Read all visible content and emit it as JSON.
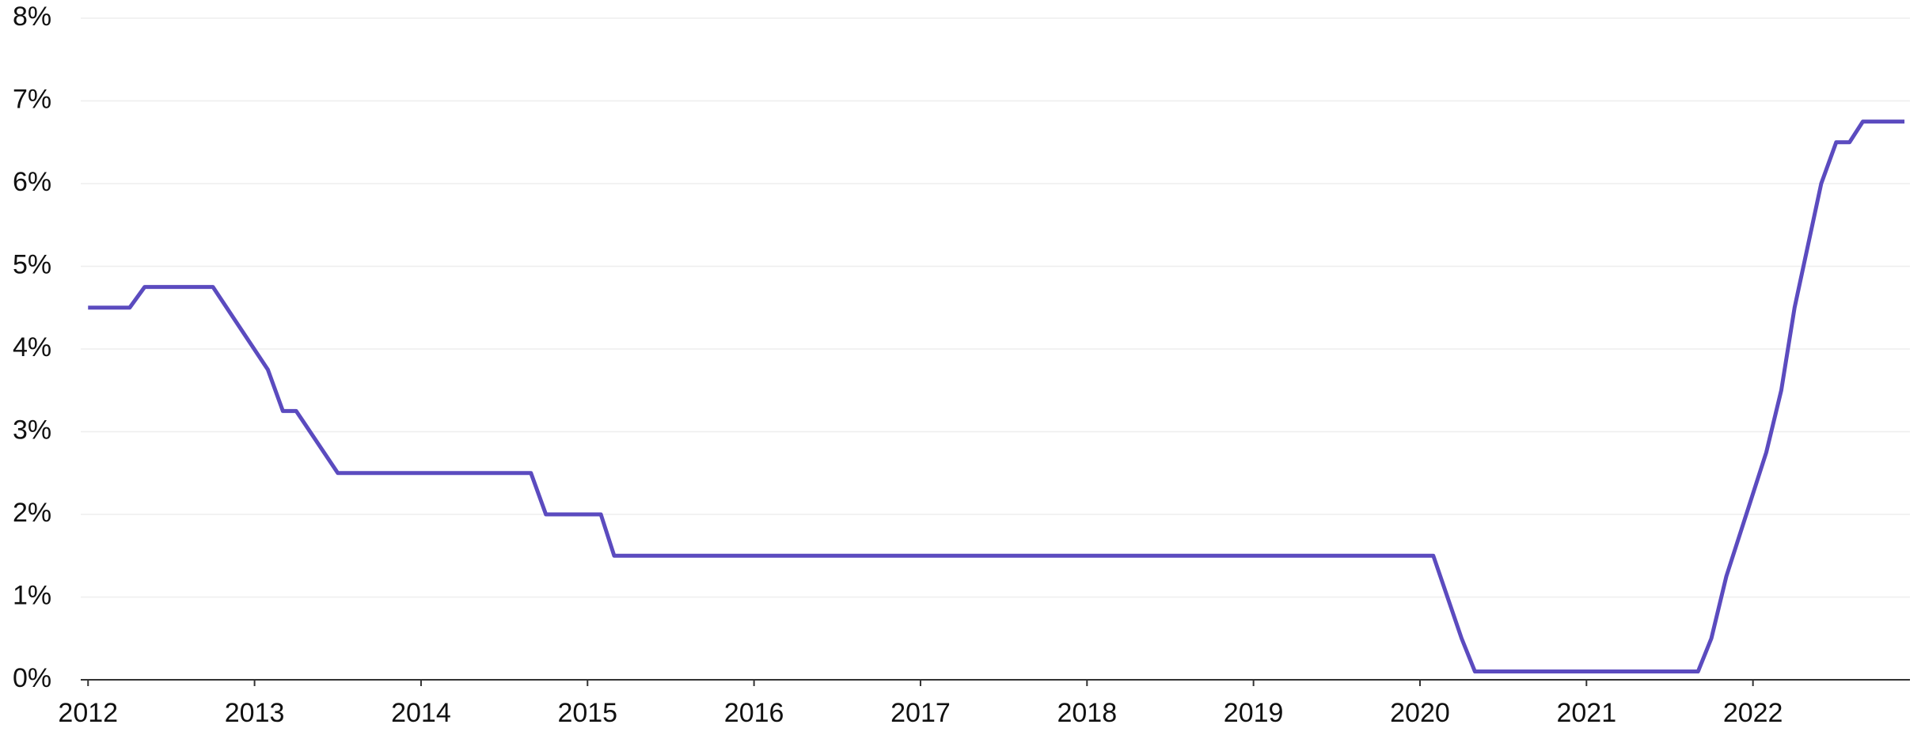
{
  "chart_data": {
    "type": "line",
    "x": [
      2012.0,
      2012.25,
      2012.34,
      2012.75,
      2013.08,
      2013.17,
      2013.25,
      2013.5,
      2014.66,
      2014.75,
      2015.08,
      2015.16,
      2020.08,
      2020.25,
      2020.33,
      2021.67,
      2021.75,
      2021.84,
      2022.08,
      2022.17,
      2022.25,
      2022.41,
      2022.5,
      2022.58,
      2022.66,
      2022.91
    ],
    "series": [
      {
        "color": "#5b4bbf",
        "values": [
          4.5,
          4.5,
          4.75,
          4.75,
          3.75,
          3.25,
          3.25,
          2.5,
          2.5,
          2.0,
          2.0,
          1.5,
          1.5,
          0.5,
          0.1,
          0.1,
          0.5,
          1.25,
          2.75,
          3.5,
          4.5,
          6.0,
          6.5,
          6.5,
          6.75,
          6.75
        ]
      }
    ],
    "xlim": [
      2011.956,
      2022.943
    ],
    "xticks": [
      2012,
      2013,
      2014,
      2015,
      2016,
      2017,
      2018,
      2019,
      2020,
      2021,
      2022
    ],
    "ylim": [
      0,
      8
    ],
    "yticks": [
      {
        "value": 0,
        "label": "0%"
      },
      {
        "value": 1,
        "label": "1%"
      },
      {
        "value": 2,
        "label": "2%"
      },
      {
        "value": 3,
        "label": "3%"
      },
      {
        "value": 4,
        "label": "4%"
      },
      {
        "value": 5,
        "label": "5%"
      },
      {
        "value": 6,
        "label": "6%"
      },
      {
        "value": 7,
        "label": "7%"
      },
      {
        "value": 8,
        "label": "8%"
      }
    ],
    "grid": true
  }
}
